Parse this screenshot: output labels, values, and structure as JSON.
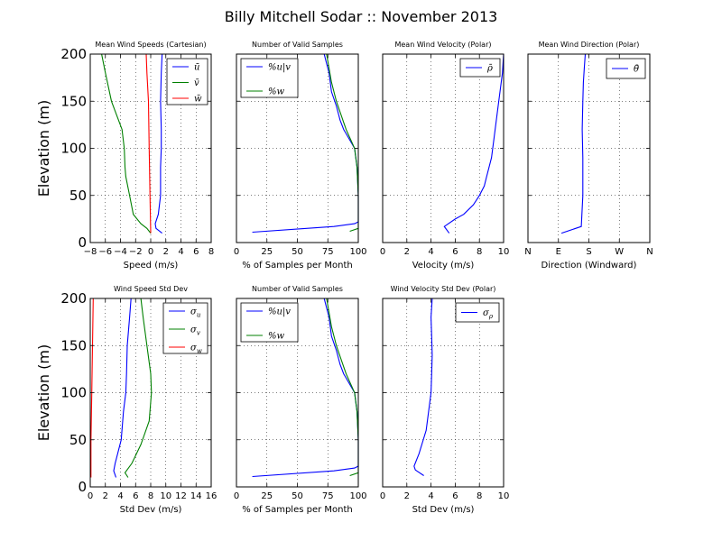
{
  "figure": {
    "title": "Billy Mitchell Sodar :: November 2013",
    "colors": {
      "blue": "#0000ff",
      "green": "#008000",
      "red": "#ff0000"
    }
  },
  "chart_data": [
    {
      "type": "line",
      "title": "Mean Wind Speeds (Cartesian)",
      "xlabel": "Speed (m/s)",
      "ylabel": "Elevation (m)",
      "xlim": [
        -8,
        8
      ],
      "ylim": [
        0,
        200
      ],
      "xticks": [
        -8,
        -6,
        -4,
        -2,
        0,
        2,
        4,
        6,
        8
      ],
      "xtick_labels": [
        "−8",
        "−6",
        "−4",
        "−2",
        "0",
        "2",
        "4",
        "6",
        "8"
      ],
      "yticks": [
        0,
        50,
        100,
        150,
        200
      ],
      "ytick_labels": [
        "0",
        "50",
        "100",
        "150",
        "200"
      ],
      "grid": true,
      "legend": "top-right",
      "series": [
        {
          "name": "ū",
          "color": "#0000ff",
          "x": [
            1.5,
            0.7,
            0.6,
            1.0,
            1.3,
            1.3,
            1.4,
            1.4,
            1.3,
            1.4,
            1.5
          ],
          "y": [
            10,
            15,
            20,
            30,
            50,
            80,
            100,
            120,
            150,
            180,
            200
          ]
        },
        {
          "name": "v̄",
          "color": "#008000",
          "x": [
            0,
            -0.5,
            -1.3,
            -2.3,
            -2.8,
            -3.3,
            -3.4,
            -3.5,
            -3.8,
            -5.2,
            -6.0,
            -6.5
          ],
          "y": [
            10,
            15,
            20,
            30,
            50,
            70,
            80,
            100,
            120,
            150,
            180,
            200
          ]
        },
        {
          "name": "w̄",
          "color": "#ff0000",
          "x": [
            0,
            -0.1,
            -0.2,
            -0.3,
            -0.5,
            -0.6
          ],
          "y": [
            10,
            50,
            100,
            150,
            180,
            200
          ]
        }
      ]
    },
    {
      "type": "line",
      "title": "Number of Valid Samples",
      "xlabel": "% of Samples per Month",
      "xlim": [
        0,
        100
      ],
      "ylim": [
        0,
        200
      ],
      "xticks": [
        0,
        25,
        50,
        75,
        100
      ],
      "xtick_labels": [
        "0",
        "25",
        "50",
        "75",
        "100"
      ],
      "yticks": [
        0,
        50,
        100,
        150,
        200
      ],
      "ytick_labels": [],
      "grid": true,
      "legend": "top-left",
      "series": [
        {
          "name": "%u|v",
          "color": "#0000ff",
          "x": [
            13,
            80,
            97,
            100,
            100,
            99,
            97,
            88,
            85,
            82,
            78,
            76,
            74,
            72
          ],
          "y": [
            11,
            17,
            20,
            22,
            50,
            80,
            100,
            120,
            130,
            145,
            160,
            180,
            190,
            200
          ]
        },
        {
          "name": "%w",
          "color": "#008000",
          "x": [
            93,
            100,
            100,
            99,
            97,
            90,
            82,
            80,
            78,
            76,
            74
          ],
          "y": [
            12,
            15,
            50,
            80,
            100,
            120,
            150,
            160,
            170,
            185,
            200
          ]
        }
      ]
    },
    {
      "type": "line",
      "title": "Mean Wind Velocity (Polar)",
      "xlabel": "Velocity (m/s)",
      "xlim": [
        0,
        10
      ],
      "ylim": [
        0,
        200
      ],
      "xticks": [
        0,
        2,
        4,
        6,
        8,
        10
      ],
      "xtick_labels": [
        "0",
        "2",
        "4",
        "6",
        "8",
        "10"
      ],
      "yticks": [
        0,
        50,
        100,
        150,
        200
      ],
      "ytick_labels": [],
      "grid": true,
      "legend": "top-right",
      "series": [
        {
          "name": "ρ̄",
          "color": "#0000ff",
          "x": [
            5.5,
            5.1,
            6.0,
            6.7,
            7.5,
            8.0,
            8.4,
            8.6,
            9.0,
            9.2,
            9.5,
            9.7,
            9.9,
            10.0
          ],
          "y": [
            10,
            17,
            25,
            30,
            40,
            50,
            60,
            70,
            90,
            110,
            140,
            160,
            180,
            200
          ]
        }
      ]
    },
    {
      "type": "line",
      "title": "Mean Wind Direction (Polar)",
      "xlabel": "Direction (Windward)",
      "xlim": [
        0,
        4
      ],
      "ylim": [
        0,
        200
      ],
      "xticks": [
        0,
        1,
        2,
        3,
        4
      ],
      "xtick_labels": [
        "N",
        "E",
        "S",
        "W",
        "N"
      ],
      "yticks": [
        0,
        50,
        100,
        150,
        200
      ],
      "ytick_labels": [],
      "grid": true,
      "legend": "top-right",
      "series": [
        {
          "name": "θ̄",
          "color": "#0000ff",
          "x": [
            1.1,
            1.75,
            1.8,
            1.8,
            1.78,
            1.8,
            1.82,
            1.85,
            1.88
          ],
          "y": [
            10,
            17,
            50,
            90,
            120,
            150,
            170,
            185,
            200
          ]
        }
      ]
    },
    {
      "type": "line",
      "title": "Wind Speed Std Dev",
      "xlabel": "Std Dev (m/s)",
      "ylabel": "Elevation (m)",
      "xlim": [
        0,
        16
      ],
      "ylim": [
        0,
        200
      ],
      "xticks": [
        0,
        2,
        4,
        6,
        8,
        10,
        12,
        14,
        16
      ],
      "xtick_labels": [
        "0",
        "2",
        "4",
        "6",
        "8",
        "10",
        "12",
        "14",
        "16"
      ],
      "yticks": [
        0,
        50,
        100,
        150,
        200
      ],
      "ytick_labels": [
        "0",
        "50",
        "100",
        "150",
        "200"
      ],
      "grid": true,
      "legend": "top-right",
      "series": [
        {
          "name": "σ_u",
          "color": "#0000ff",
          "x": [
            3.4,
            3.1,
            3.3,
            4.1,
            4.4,
            4.7,
            4.8,
            4.9,
            5.2,
            5.4
          ],
          "y": [
            10,
            17,
            25,
            50,
            80,
            100,
            120,
            150,
            180,
            200
          ]
        },
        {
          "name": "σ_v",
          "color": "#008000",
          "x": [
            5.0,
            4.6,
            5.5,
            6.7,
            7.8,
            8.1,
            8.0,
            7.5,
            7.0,
            6.7
          ],
          "y": [
            10,
            15,
            25,
            45,
            70,
            100,
            120,
            150,
            180,
            200
          ]
        },
        {
          "name": "σ_w",
          "color": "#ff0000",
          "x": [
            0.1,
            0.1,
            0.2,
            0.3,
            0.4
          ],
          "y": [
            10,
            50,
            100,
            150,
            200
          ]
        }
      ]
    },
    {
      "type": "line",
      "title": "Number of Valid Samples",
      "xlabel": "% of Samples per Month",
      "xlim": [
        0,
        100
      ],
      "ylim": [
        0,
        200
      ],
      "xticks": [
        0,
        25,
        50,
        75,
        100
      ],
      "xtick_labels": [
        "0",
        "25",
        "50",
        "75",
        "100"
      ],
      "yticks": [
        0,
        50,
        100,
        150,
        200
      ],
      "ytick_labels": [],
      "grid": true,
      "legend": "top-left",
      "series": [
        {
          "name": "%u|v",
          "color": "#0000ff",
          "x": [
            13,
            80,
            97,
            100,
            100,
            99,
            97,
            88,
            85,
            82,
            78,
            76,
            74,
            72
          ],
          "y": [
            11,
            17,
            20,
            22,
            50,
            80,
            100,
            120,
            130,
            145,
            160,
            180,
            190,
            200
          ]
        },
        {
          "name": "%w",
          "color": "#008000",
          "x": [
            93,
            100,
            100,
            99,
            97,
            90,
            82,
            80,
            78,
            76,
            74
          ],
          "y": [
            12,
            15,
            50,
            80,
            100,
            120,
            150,
            160,
            170,
            185,
            200
          ]
        }
      ]
    },
    {
      "type": "line",
      "title": "Wind Velocity Std Dev (Polar)",
      "xlabel": "Std Dev (m/s)",
      "xlim": [
        0,
        10
      ],
      "ylim": [
        0,
        200
      ],
      "xticks": [
        0,
        2,
        4,
        6,
        8,
        10
      ],
      "xtick_labels": [
        "0",
        "2",
        "4",
        "6",
        "8",
        "10"
      ],
      "yticks": [
        0,
        50,
        100,
        150,
        200
      ],
      "ytick_labels": [],
      "grid": true,
      "legend": "top-right",
      "series": [
        {
          "name": "σ_ρ",
          "color": "#0000ff",
          "x": [
            3.4,
            2.7,
            2.6,
            3.0,
            3.6,
            3.8,
            4.0,
            4.05,
            4.1,
            4.05,
            4.0,
            4.1
          ],
          "y": [
            12,
            18,
            22,
            35,
            60,
            80,
            100,
            120,
            140,
            160,
            180,
            200
          ]
        }
      ]
    }
  ]
}
